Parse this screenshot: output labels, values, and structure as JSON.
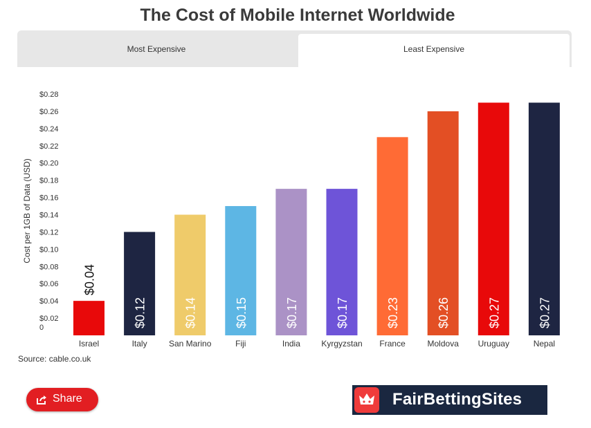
{
  "title": "The Cost of Mobile Internet Worldwide",
  "tabs": [
    {
      "label": "Most Expensive",
      "active": false
    },
    {
      "label": "Least Expensive",
      "active": true
    }
  ],
  "source": "Source: cable.co.uk",
  "share_label": "Share",
  "logo_text": "FairBettingSites",
  "colors": {
    "share": "#e21e22",
    "logo_bg": "#1a2740",
    "logo_badge": "#ef3b3b"
  },
  "chart_data": {
    "type": "bar",
    "ylabel": "Cost per 1GB of Data (USD)",
    "xlabel": "",
    "ylim": [
      0,
      0.28
    ],
    "yticks": [
      "0",
      "$0.02",
      "$0.04",
      "$0.06",
      "$0.08",
      "$0.10",
      "$0.12",
      "$0.14",
      "$0.16",
      "$0.18",
      "$0.20",
      "$0.22",
      "$0.24",
      "$0.26",
      "$0.28"
    ],
    "categories": [
      "Israel",
      "Italy",
      "San Marino",
      "Fiji",
      "India",
      "Kyrgyzstan",
      "France",
      "Moldova",
      "Uruguay",
      "Nepal"
    ],
    "values": [
      0.04,
      0.12,
      0.14,
      0.15,
      0.17,
      0.17,
      0.23,
      0.26,
      0.27,
      0.27
    ],
    "labels": [
      "$0.04",
      "$0.12",
      "$0.14",
      "$0.15",
      "$0.17",
      "$0.17",
      "$0.23",
      "$0.26",
      "$0.27",
      "$0.27"
    ],
    "colors": [
      "#e8090a",
      "#1e2542",
      "#efcb6a",
      "#5db6e4",
      "#ab92c6",
      "#6e54d8",
      "#ff6b35",
      "#e34f24",
      "#e8090a",
      "#1e2542"
    ],
    "grid": false
  }
}
